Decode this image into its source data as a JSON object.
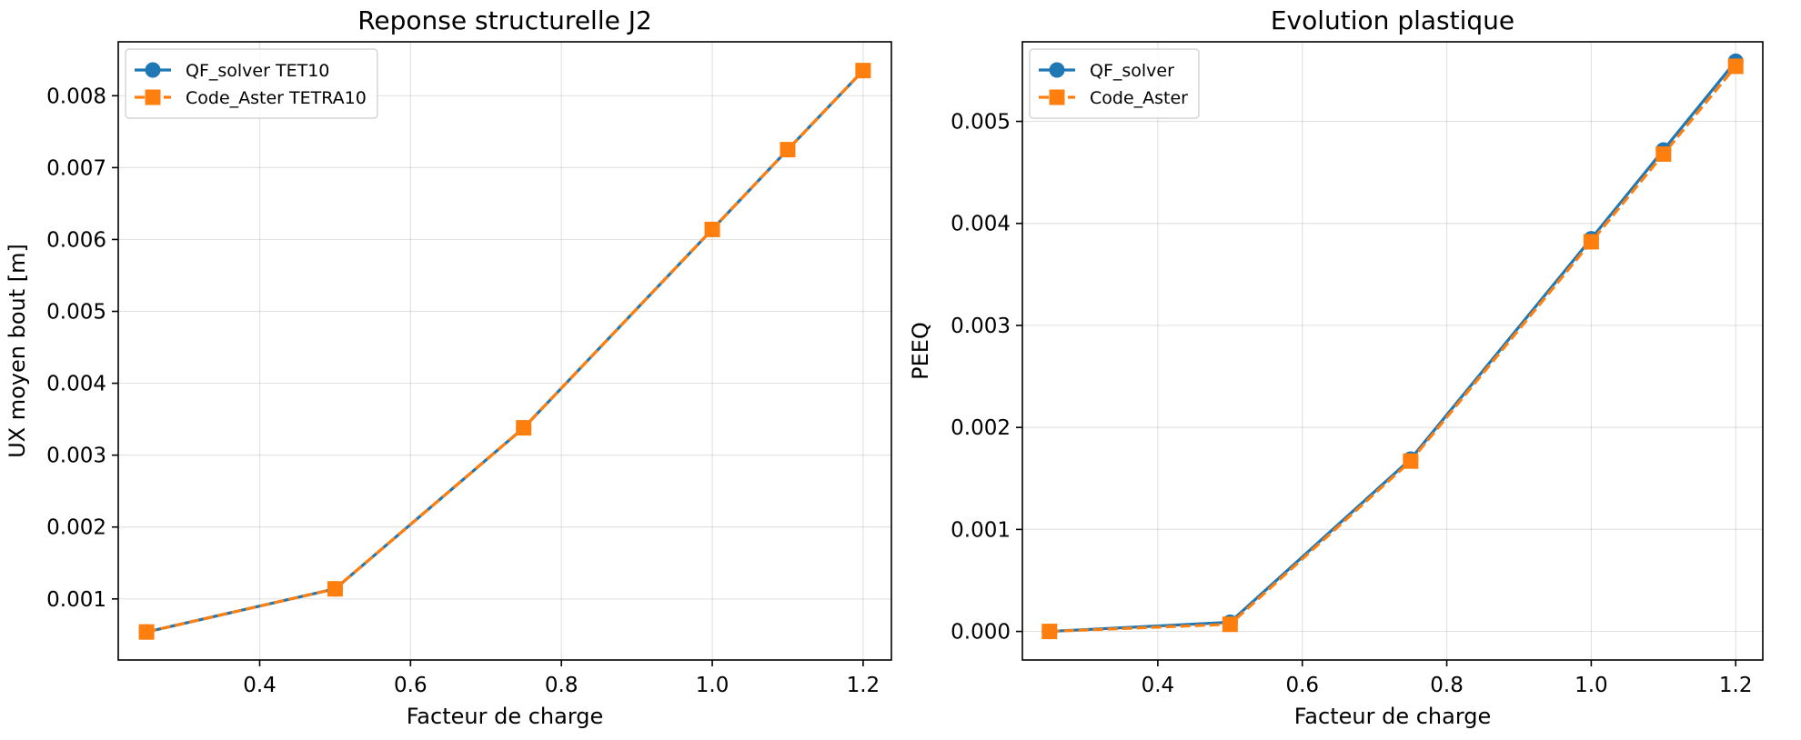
{
  "chart_data": [
    {
      "type": "line",
      "title": "Reponse structurelle J2",
      "xlabel": "Facteur de charge",
      "ylabel": "UX moyen bout [m]",
      "xlim": [
        0.2125,
        1.2375
      ],
      "ylim": [
        0.00015,
        0.00875
      ],
      "xticks": [
        0.4,
        0.6,
        0.8,
        1.0,
        1.2
      ],
      "xtick_labels": [
        "0.4",
        "0.6",
        "0.8",
        "1.0",
        "1.2"
      ],
      "yticks": [
        0.001,
        0.002,
        0.003,
        0.004,
        0.005,
        0.006,
        0.007,
        0.008
      ],
      "ytick_labels": [
        "0.001",
        "0.002",
        "0.003",
        "0.004",
        "0.005",
        "0.006",
        "0.007",
        "0.008"
      ],
      "grid": true,
      "legend_position": "top-left",
      "x": [
        0.25,
        0.5,
        0.75,
        1.0,
        1.1,
        1.2
      ],
      "series": [
        {
          "name": "QF_solver TET10",
          "color": "#1f77b4",
          "marker": "circle",
          "linestyle": "solid",
          "values": [
            0.00054,
            0.00114,
            0.00338,
            0.00614,
            0.00725,
            0.00835
          ]
        },
        {
          "name": "Code_Aster TETRA10",
          "color": "#ff7f0e",
          "marker": "square",
          "linestyle": "dashed",
          "values": [
            0.00054,
            0.00114,
            0.00338,
            0.00614,
            0.00725,
            0.00835
          ]
        }
      ]
    },
    {
      "type": "line",
      "title": "Evolution plastique",
      "xlabel": "Facteur de charge",
      "ylabel": "PEEQ",
      "xlim": [
        0.2125,
        1.2375
      ],
      "ylim": [
        -0.00028,
        0.00578
      ],
      "xticks": [
        0.4,
        0.6,
        0.8,
        1.0,
        1.2
      ],
      "xtick_labels": [
        "0.4",
        "0.6",
        "0.8",
        "1.0",
        "1.2"
      ],
      "yticks": [
        0.0,
        0.001,
        0.002,
        0.003,
        0.004,
        0.005
      ],
      "ytick_labels": [
        "0.000",
        "0.001",
        "0.002",
        "0.003",
        "0.004",
        "0.005"
      ],
      "grid": true,
      "legend_position": "top-left",
      "x": [
        0.25,
        0.5,
        0.75,
        1.0,
        1.1,
        1.2
      ],
      "series": [
        {
          "name": "QF_solver",
          "color": "#1f77b4",
          "marker": "circle",
          "linestyle": "solid",
          "values": [
            0.0,
            9e-05,
            0.00169,
            0.00385,
            0.00472,
            0.00559
          ]
        },
        {
          "name": "Code_Aster",
          "color": "#ff7f0e",
          "marker": "square",
          "linestyle": "dashed",
          "values": [
            0.0,
            7e-05,
            0.00167,
            0.00382,
            0.00468,
            0.00554
          ]
        }
      ]
    }
  ]
}
